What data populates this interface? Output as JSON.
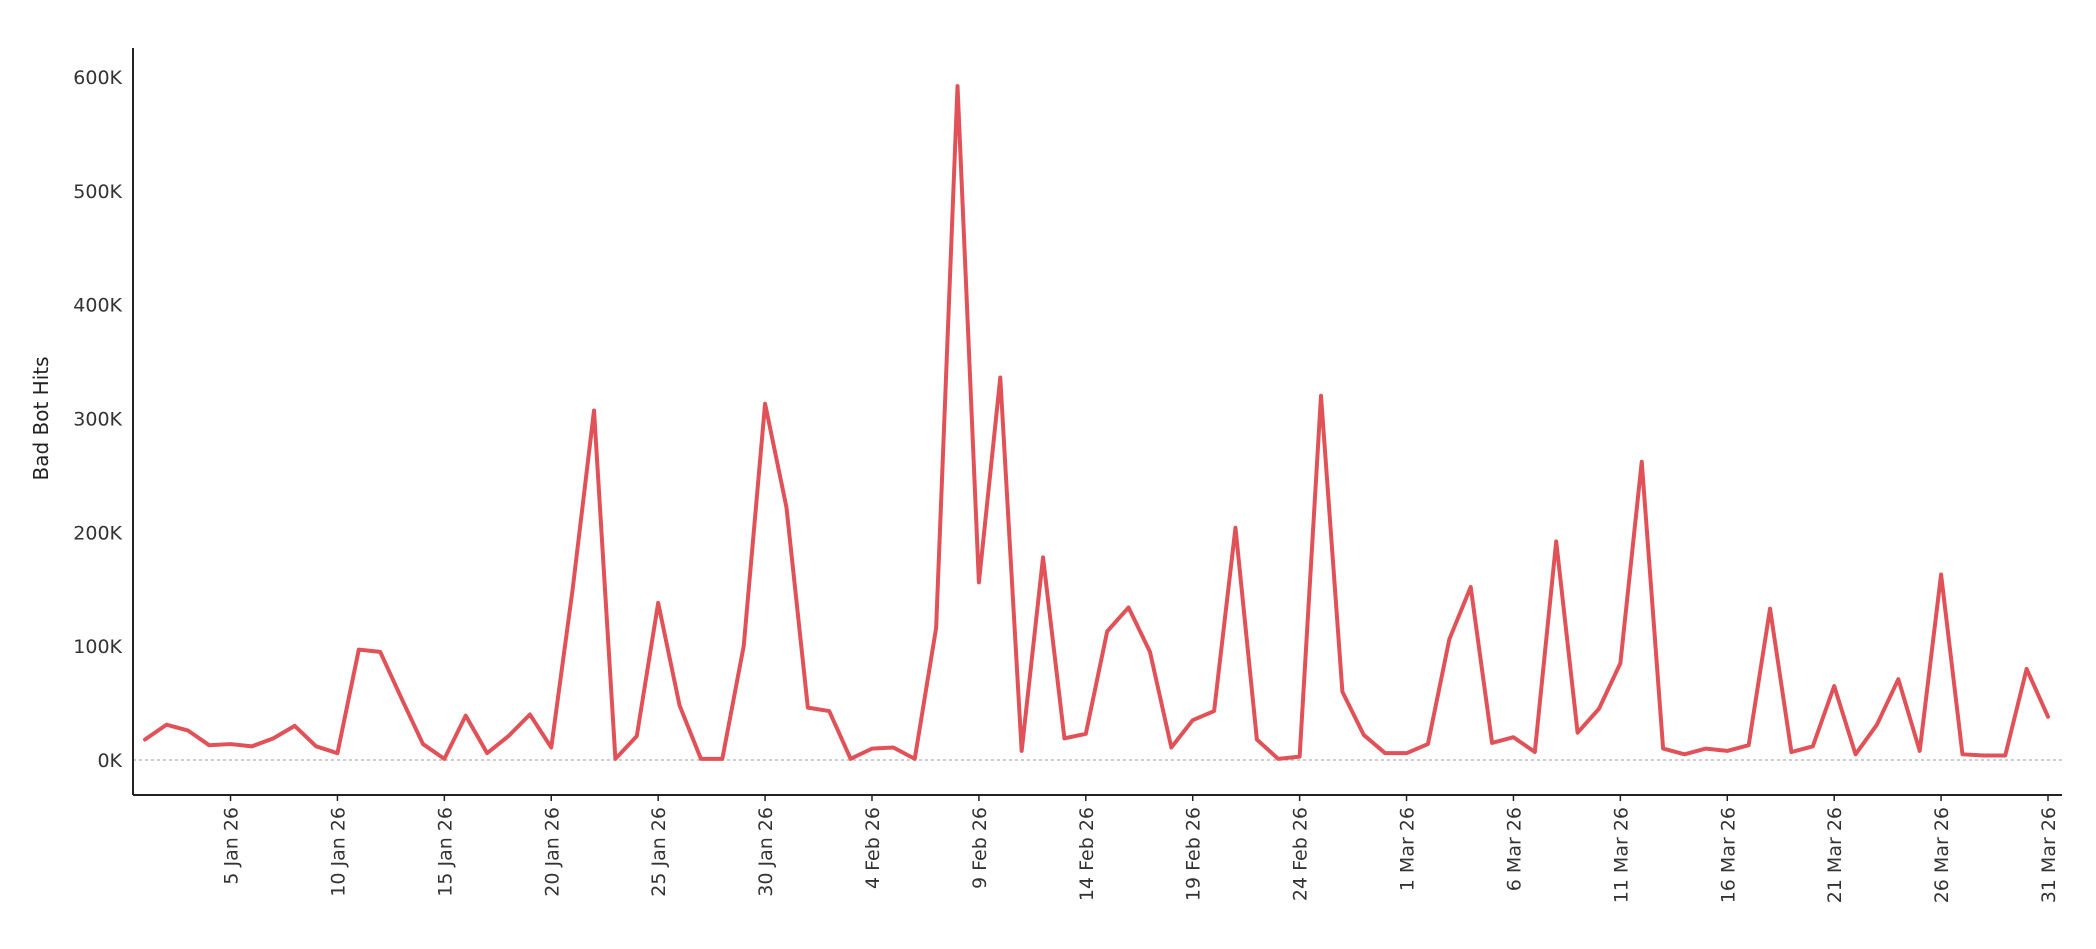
{
  "chart_data": {
    "type": "line",
    "xlabel": "",
    "ylabel": "Bad Bot Hits",
    "ylim": [
      0,
      600000
    ],
    "yticks": [
      0,
      100000,
      200000,
      300000,
      400000,
      500000,
      600000
    ],
    "ytick_labels": [
      "0K",
      "100K",
      "200K",
      "300K",
      "400K",
      "500K",
      "600K"
    ],
    "x_tick_labels": [
      "5 Jan 26",
      "10 Jan 26",
      "15 Jan 26",
      "20 Jan 26",
      "25 Jan 26",
      "30 Jan 26",
      "4 Feb 26",
      "9 Feb 26",
      "14 Feb 26",
      "19 Feb 26",
      "24 Feb 26",
      "1 Mar 26",
      "6 Mar 26",
      "11 Mar 26",
      "16 Mar 26",
      "21 Mar 26",
      "26 Mar 26",
      "31 Mar 26"
    ],
    "grid": false,
    "zero_line": true,
    "colors": {
      "series": "#e05257",
      "axis": "#222222",
      "zero_line": "#b0b0b0"
    },
    "series": [
      {
        "x_start": "2026-01-01",
        "x_end": "2026-03-31",
        "values": [
          18000,
          31000,
          26000,
          13000,
          14000,
          12000,
          19000,
          30000,
          12000,
          6000,
          97000,
          95000,
          54000,
          14000,
          1000,
          39000,
          6000,
          21000,
          40000,
          11000,
          150000,
          307000,
          1000,
          21000,
          138000,
          48000,
          1000,
          1000,
          100000,
          313000,
          222000,
          46000,
          43000,
          1000,
          10000,
          11000,
          1000,
          116000,
          592000,
          156000,
          336000,
          8000,
          178000,
          19000,
          23000,
          113000,
          134000,
          95000,
          11000,
          35000,
          43000,
          204000,
          18000,
          1000,
          3000,
          320000,
          60000,
          22000,
          6000,
          6000,
          14000,
          106000,
          152000,
          15000,
          20000,
          7000,
          192000,
          24000,
          45000,
          85000,
          262000,
          10000,
          5000,
          10000,
          8000,
          13000,
          133000,
          7000,
          12000,
          65000,
          5000,
          31000,
          71000,
          8000,
          163000,
          5000,
          4000,
          4000,
          80000,
          38000
        ]
      }
    ]
  }
}
